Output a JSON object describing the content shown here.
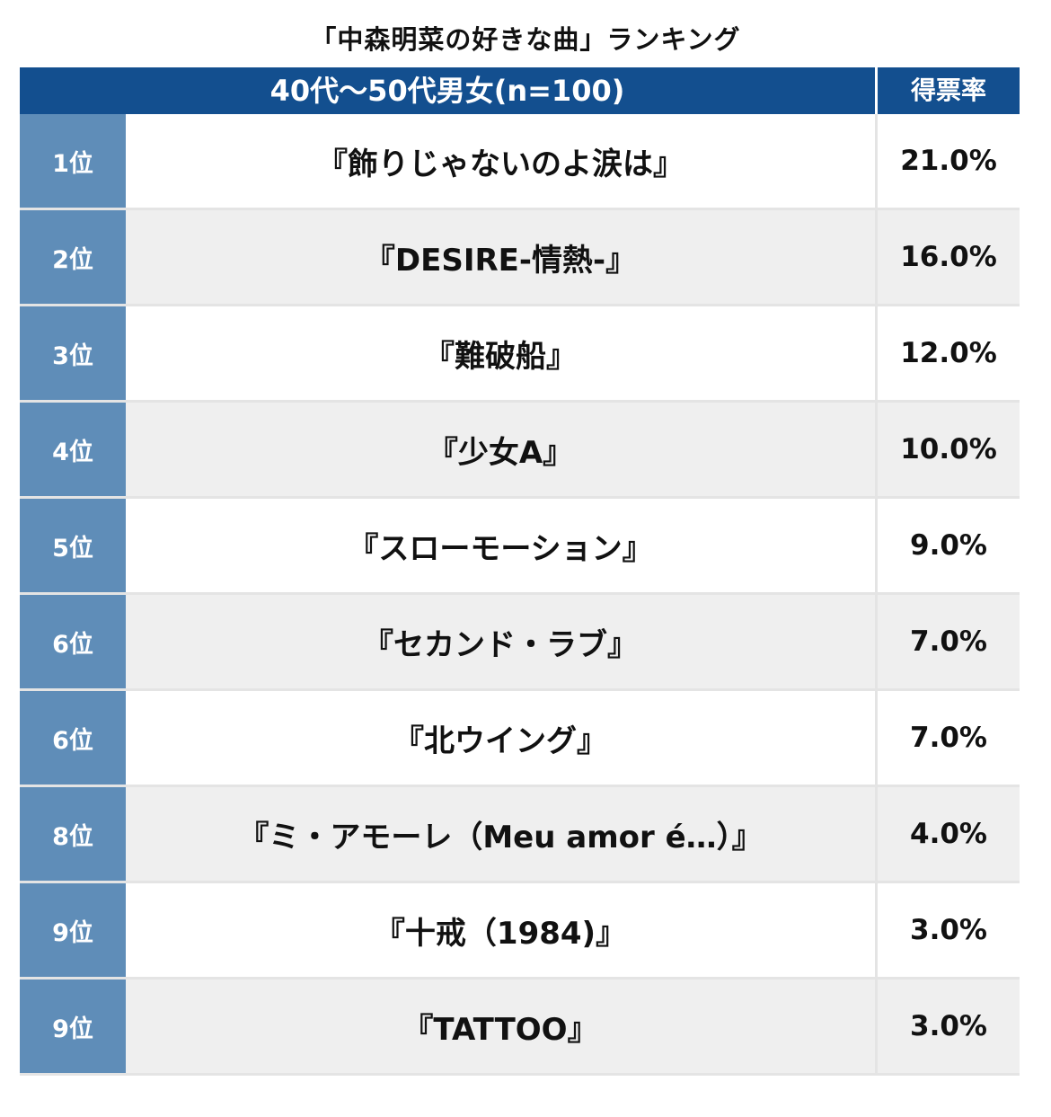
{
  "title": "「中森明菜の好きな曲」ランキング",
  "header": {
    "group": "40代〜50代男女(n=100)",
    "pct_label": "得票率"
  },
  "rows": [
    {
      "rank": "1位",
      "song": "『飾りじゃないのよ涙は』",
      "pct": "21.0%"
    },
    {
      "rank": "2位",
      "song": "『DESIRE-情熱-』",
      "pct": "16.0%"
    },
    {
      "rank": "3位",
      "song": "『難破船』",
      "pct": "12.0%"
    },
    {
      "rank": "4位",
      "song": "『少女A』",
      "pct": "10.0%"
    },
    {
      "rank": "5位",
      "song": "『スローモーション』",
      "pct": "9.0%"
    },
    {
      "rank": "6位",
      "song": "『セカンド・ラブ』",
      "pct": "7.0%"
    },
    {
      "rank": "6位",
      "song": "『北ウイング』",
      "pct": "7.0%"
    },
    {
      "rank": "8位",
      "song": "『ミ・アモーレ（Meu amor é…）』",
      "pct": "4.0%"
    },
    {
      "rank": "9位",
      "song": "『十戒（1984)』",
      "pct": "3.0%"
    },
    {
      "rank": "9位",
      "song": "『TATTOO』",
      "pct": "3.0%"
    }
  ],
  "colors": {
    "header_bg": "#134f8f",
    "rank_bg": "#5f8db8",
    "alt_row_bg": "#efefef"
  }
}
